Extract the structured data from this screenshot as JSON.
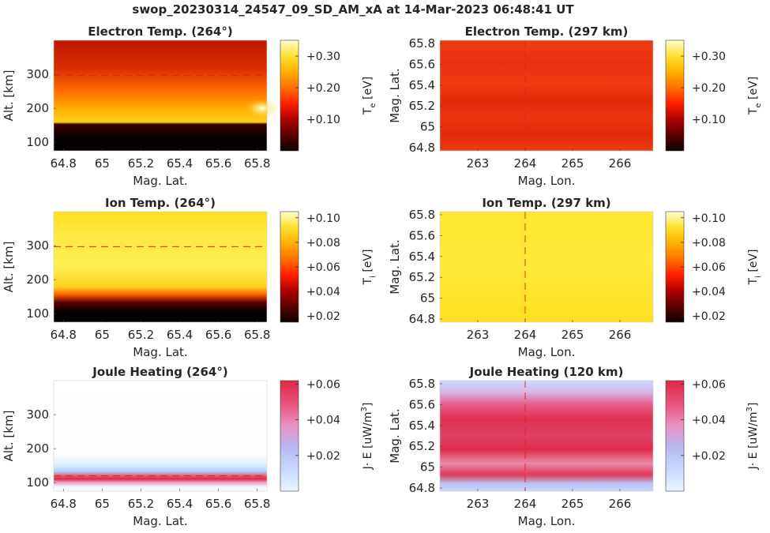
{
  "figure_title": "swop_20230314_24547_09_SD_AM_xA at 14-Mar-2023 06:48:41 UT",
  "colormaps": {
    "hot": [
      "#0a0000",
      "#5a0000",
      "#b00000",
      "#ff2000",
      "#ff7000",
      "#ffb000",
      "#ffe030",
      "#ffffd0"
    ],
    "joule": [
      "#e8f4ff",
      "#c8d8ff",
      "#b8b8f0",
      "#e890c0",
      "#e8507a",
      "#e02848"
    ]
  },
  "chart_data": [
    {
      "type": "heatmap",
      "title": "Electron Temp. (264°)",
      "xlabel": "Mag. Lat.",
      "ylabel": "Alt. [km]",
      "xlim": [
        64.75,
        65.85
      ],
      "ylim": [
        75,
        400
      ],
      "xticks": [
        "64.8",
        "65",
        "65.2",
        "65.4",
        "65.6",
        "65.8"
      ],
      "xtick_values": [
        64.8,
        65.0,
        65.2,
        65.4,
        65.6,
        65.8
      ],
      "yticks": [
        "100",
        "200",
        "300"
      ],
      "ytick_values": [
        100,
        200,
        300
      ],
      "ref_line": {
        "orientation": "horizontal",
        "value": 297
      },
      "colormap": "hot",
      "clim": [
        0.0,
        0.35
      ],
      "colorbar": {
        "label": "T",
        "label_sub": "e",
        "label_unit": " [eV]",
        "ticks": [
          "+0.10",
          "+0.20",
          "+0.30"
        ],
        "tick_values": [
          0.1,
          0.2,
          0.3
        ]
      }
    },
    {
      "type": "heatmap",
      "title": "Electron Temp. (297 km)",
      "xlabel": "Mag. Lon.",
      "ylabel": "Mag. Lat.",
      "xlim": [
        262.2,
        266.7
      ],
      "ylim": [
        64.77,
        65.83
      ],
      "xticks": [
        "263",
        "264",
        "265",
        "266"
      ],
      "xtick_values": [
        263,
        264,
        265,
        266
      ],
      "yticks": [
        "64.8",
        "65",
        "65.2",
        "65.4",
        "65.6",
        "65.8"
      ],
      "ytick_values": [
        64.8,
        65.0,
        65.2,
        65.4,
        65.6,
        65.8
      ],
      "ref_line": {
        "orientation": "vertical",
        "value": 264
      },
      "colormap": "hot",
      "clim": [
        0.0,
        0.35
      ],
      "colorbar": {
        "label": "T",
        "label_sub": "e",
        "label_unit": " [eV]",
        "ticks": [
          "+0.10",
          "+0.20",
          "+0.30"
        ],
        "tick_values": [
          0.1,
          0.2,
          0.3
        ]
      }
    },
    {
      "type": "heatmap",
      "title": "Ion Temp. (264°)",
      "xlabel": "Mag. Lat.",
      "ylabel": "Alt. [km]",
      "xlim": [
        64.75,
        65.85
      ],
      "ylim": [
        75,
        400
      ],
      "xticks": [
        "64.8",
        "65",
        "65.2",
        "65.4",
        "65.6",
        "65.8"
      ],
      "xtick_values": [
        64.8,
        65.0,
        65.2,
        65.4,
        65.6,
        65.8
      ],
      "yticks": [
        "100",
        "200",
        "300"
      ],
      "ytick_values": [
        100,
        200,
        300
      ],
      "ref_line": {
        "orientation": "horizontal",
        "value": 297
      },
      "colormap": "hot",
      "clim": [
        0.015,
        0.105
      ],
      "colorbar": {
        "label": "T",
        "label_sub": "i",
        "label_unit": " [eV]",
        "ticks": [
          "+0.02",
          "+0.04",
          "+0.06",
          "+0.08",
          "+0.10"
        ],
        "tick_values": [
          0.02,
          0.04,
          0.06,
          0.08,
          0.1
        ]
      }
    },
    {
      "type": "heatmap",
      "title": "Ion Temp. (297 km)",
      "xlabel": "Mag. Lon.",
      "ylabel": "Mag. Lat.",
      "xlim": [
        262.2,
        266.7
      ],
      "ylim": [
        64.77,
        65.83
      ],
      "xticks": [
        "263",
        "264",
        "265",
        "266"
      ],
      "xtick_values": [
        263,
        264,
        265,
        266
      ],
      "yticks": [
        "64.8",
        "65",
        "65.2",
        "65.4",
        "65.6",
        "65.8"
      ],
      "ytick_values": [
        64.8,
        65.0,
        65.2,
        65.4,
        65.6,
        65.8
      ],
      "ref_line": {
        "orientation": "vertical",
        "value": 264
      },
      "colormap": "hot",
      "clim": [
        0.015,
        0.105
      ],
      "colorbar": {
        "label": "T",
        "label_sub": "i",
        "label_unit": " [eV]",
        "ticks": [
          "+0.02",
          "+0.04",
          "+0.06",
          "+0.08",
          "+0.10"
        ],
        "tick_values": [
          0.02,
          0.04,
          0.06,
          0.08,
          0.1
        ]
      }
    },
    {
      "type": "heatmap",
      "title": "Joule Heating (264°)",
      "xlabel": "Mag. Lat.",
      "ylabel": "Alt. [km]",
      "xlim": [
        64.75,
        65.85
      ],
      "ylim": [
        75,
        400
      ],
      "xticks": [
        "64.8",
        "65",
        "65.2",
        "65.4",
        "65.6",
        "65.8"
      ],
      "xtick_values": [
        64.8,
        65.0,
        65.2,
        65.4,
        65.6,
        65.8
      ],
      "yticks": [
        "100",
        "200",
        "300"
      ],
      "ytick_values": [
        100,
        200,
        300
      ],
      "ref_line": {
        "orientation": "horizontal",
        "value": 120
      },
      "colormap": "joule",
      "clim": [
        0.0,
        0.062
      ],
      "colorbar": {
        "label": "J· E [uW/m",
        "label_sup": "3",
        "label_tail": "]",
        "ticks": [
          "+0.02",
          "+0.04",
          "+0.06"
        ],
        "tick_values": [
          0.02,
          0.04,
          0.06
        ]
      }
    },
    {
      "type": "heatmap",
      "title": "Joule Heating (120 km)",
      "xlabel": "Mag. Lon.",
      "ylabel": "Mag. Lat.",
      "xlim": [
        262.2,
        266.7
      ],
      "ylim": [
        64.77,
        65.83
      ],
      "xticks": [
        "263",
        "264",
        "265",
        "266"
      ],
      "xtick_values": [
        263,
        264,
        265,
        266
      ],
      "yticks": [
        "64.8",
        "65",
        "65.2",
        "65.4",
        "65.6",
        "65.8"
      ],
      "ytick_values": [
        64.8,
        65.0,
        65.2,
        65.4,
        65.6,
        65.8
      ],
      "ref_line": {
        "orientation": "vertical",
        "value": 264
      },
      "colormap": "joule",
      "clim": [
        0.0,
        0.062
      ],
      "colorbar": {
        "label": "J· E [uW/m",
        "label_sup": "3",
        "label_tail": "]",
        "ticks": [
          "+0.02",
          "+0.04",
          "+0.06"
        ],
        "tick_values": [
          0.02,
          0.04,
          0.06
        ]
      }
    }
  ]
}
